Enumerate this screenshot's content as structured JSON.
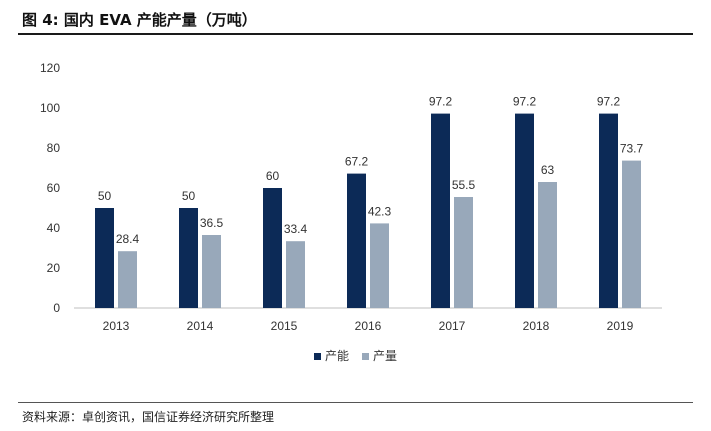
{
  "header": {
    "title": "图 4:  国内 EVA 产能产量（万吨）"
  },
  "footer": {
    "source": "资料来源：卓创资讯，国信证券经济研究所整理"
  },
  "chart_data": {
    "type": "bar",
    "categories": [
      "2013",
      "2014",
      "2015",
      "2016",
      "2017",
      "2018",
      "2019"
    ],
    "series": [
      {
        "name": "产能",
        "color": "#0c2a57",
        "values": [
          50,
          50,
          60,
          67.2,
          97.2,
          97.2,
          97.2
        ]
      },
      {
        "name": "产量",
        "color": "#98a8ba",
        "values": [
          28.4,
          36.5,
          33.4,
          42.3,
          55.5,
          63,
          73.7
        ]
      }
    ],
    "ylim": [
      0,
      120
    ],
    "yticks": [
      0,
      20,
      40,
      60,
      80,
      100,
      120
    ],
    "grid": false,
    "legend": "bottom-center",
    "data_labels": true
  }
}
